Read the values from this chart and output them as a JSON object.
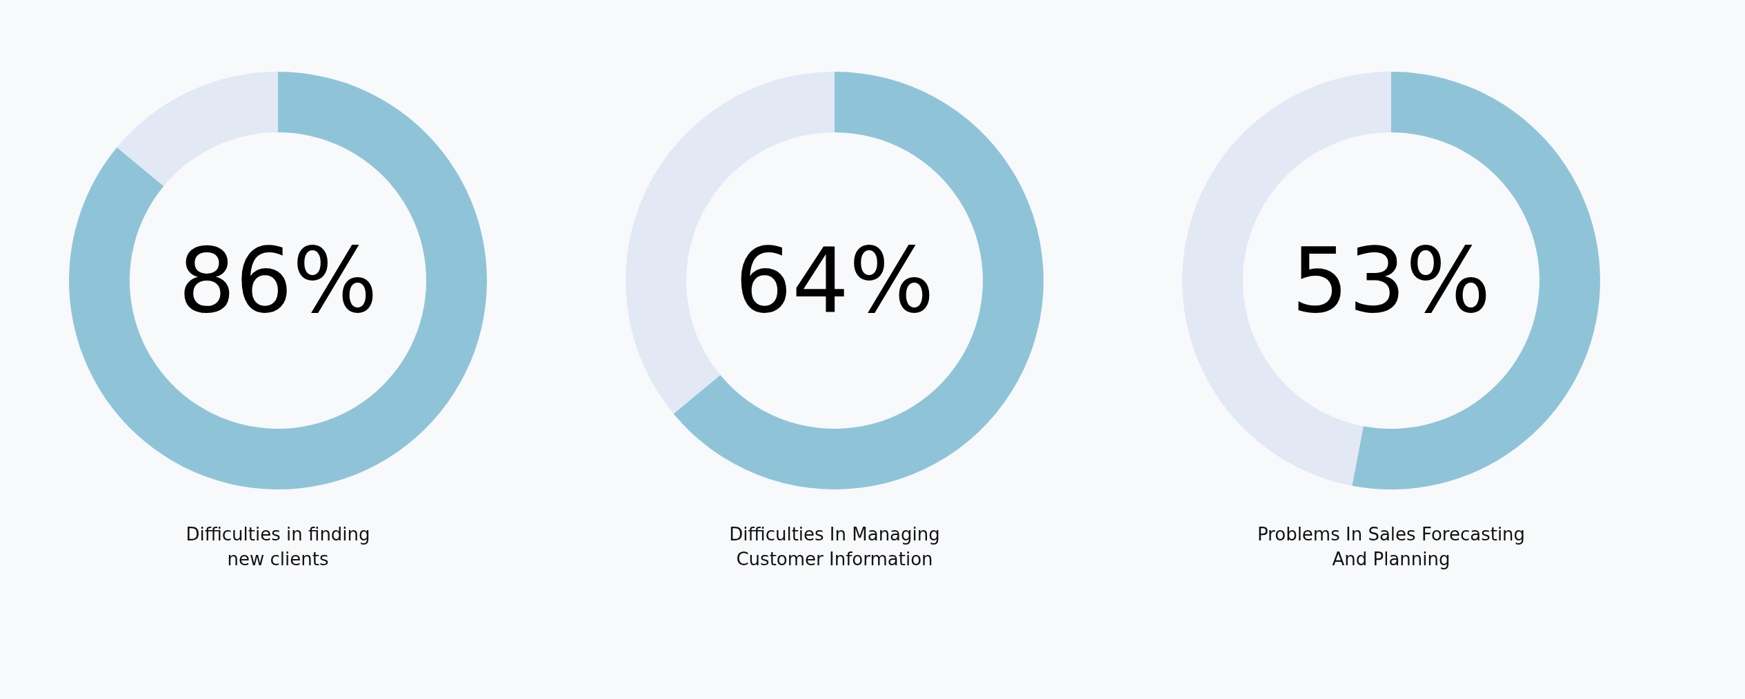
{
  "chart_data": [
    {
      "type": "donut",
      "title": "Difficulties in finding\nnew clients",
      "categories": [
        null,
        null
      ],
      "values": [
        86,
        14
      ],
      "colors": [
        "#8fc4d8",
        "#e3e8f5"
      ],
      "annotations": [
        "86%"
      ]
    },
    {
      "type": "donut",
      "title": "Difficulties In Managing\nCustomer Information",
      "categories": [
        null,
        null
      ],
      "values": [
        64,
        36
      ],
      "colors": [
        "#8fc4d8",
        "#e3e8f5"
      ],
      "annotations": [
        "64%"
      ]
    },
    {
      "type": "donut",
      "title": "Problems In Sales Forecasting\nAnd Planning",
      "categories": [
        null,
        null
      ],
      "values": [
        53,
        47
      ],
      "colors": [
        "#8fc4d8",
        "#e3e8f5"
      ],
      "annotations": [
        "53%"
      ]
    }
  ]
}
